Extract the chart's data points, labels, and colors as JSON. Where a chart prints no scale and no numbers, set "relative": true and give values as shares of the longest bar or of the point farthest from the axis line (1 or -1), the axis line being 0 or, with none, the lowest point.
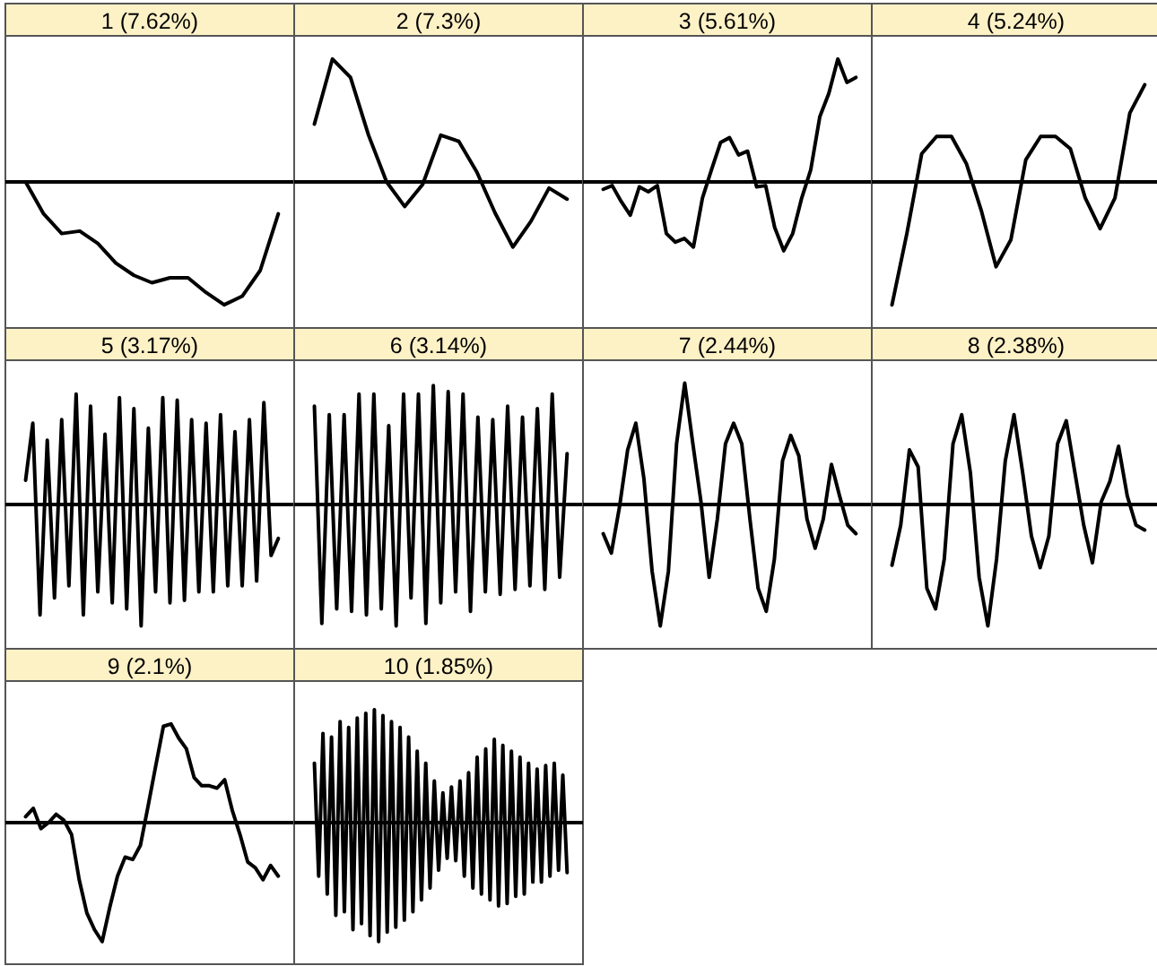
{
  "chart_data": [
    {
      "type": "line",
      "title": "1 (7.62%)",
      "relative": true,
      "categories": [
        null,
        null,
        null,
        null,
        null,
        null,
        null,
        null,
        null,
        null,
        null,
        null,
        null,
        null,
        null
      ],
      "series": [
        {
          "color": "#000000",
          "values": [
            0,
            -0.26,
            -0.42,
            -0.4,
            -0.5,
            -0.66,
            -0.76,
            -0.82,
            -0.78,
            -0.78,
            -0.9,
            -1,
            -0.93,
            -0.72,
            -0.26
          ]
        }
      ]
    },
    {
      "type": "line",
      "title": "2 (7.3%)",
      "relative": true,
      "categories": [
        null,
        null,
        null,
        null,
        null,
        null,
        null,
        null,
        null,
        null,
        null,
        null,
        null,
        null,
        null
      ],
      "series": [
        {
          "color": "#000000",
          "values": [
            0.47,
            1,
            0.85,
            0.38,
            0,
            -0.2,
            -0.02,
            0.38,
            0.33,
            0.08,
            -0.25,
            -0.53,
            -0.32,
            -0.05,
            -0.14
          ]
        }
      ]
    },
    {
      "type": "line",
      "title": "3 (5.61%)",
      "relative": true,
      "categories": [
        null,
        null,
        null,
        null,
        null,
        null,
        null,
        null,
        null,
        null,
        null,
        null,
        null,
        null,
        null,
        null,
        null,
        null,
        null,
        null,
        null,
        null,
        null,
        null,
        null,
        null,
        null,
        null,
        null
      ],
      "series": [
        {
          "color": "#000000",
          "values": [
            -0.06,
            -0.03,
            -0.16,
            -0.27,
            -0.04,
            -0.08,
            -0.03,
            -0.42,
            -0.49,
            -0.46,
            -0.53,
            -0.13,
            0.1,
            0.32,
            0.36,
            0.22,
            0.25,
            -0.04,
            -0.03,
            -0.37,
            -0.56,
            -0.42,
            -0.13,
            0.1,
            0.53,
            0.72,
            1,
            0.81,
            0.85
          ]
        }
      ]
    },
    {
      "type": "line",
      "title": "4 (5.24%)",
      "relative": true,
      "categories": [
        null,
        null,
        null,
        null,
        null,
        null,
        null,
        null,
        null,
        null,
        null,
        null,
        null,
        null,
        null,
        null,
        null,
        null
      ],
      "series": [
        {
          "color": "#000000",
          "values": [
            -1,
            -0.42,
            0.23,
            0.37,
            0.37,
            0.15,
            -0.23,
            -0.69,
            -0.47,
            0.18,
            0.37,
            0.37,
            0.27,
            -0.13,
            -0.38,
            -0.13,
            0.56,
            0.79
          ]
        }
      ]
    },
    {
      "type": "line",
      "title": "5 (3.17%)",
      "relative": true,
      "categories": [
        null,
        null,
        null,
        null,
        null,
        null,
        null,
        null,
        null,
        null,
        null,
        null,
        null,
        null,
        null,
        null,
        null,
        null,
        null,
        null,
        null,
        null,
        null,
        null,
        null,
        null,
        null,
        null,
        null,
        null,
        null,
        null,
        null,
        null,
        null,
        null
      ],
      "series": [
        {
          "color": "#000000",
          "values": [
            0.2,
            0.67,
            -0.91,
            0.53,
            -0.77,
            0.7,
            -0.67,
            0.91,
            -0.91,
            0.81,
            -0.72,
            0.58,
            -0.81,
            0.88,
            -0.86,
            0.79,
            -1,
            0.63,
            -0.72,
            0.88,
            -0.81,
            0.86,
            -0.79,
            0.7,
            -0.72,
            0.67,
            -0.72,
            0.74,
            -0.67,
            0.6,
            -0.67,
            0.7,
            -0.63,
            0.84,
            -0.42,
            -0.28
          ]
        }
      ]
    },
    {
      "type": "line",
      "title": "6 (3.14%)",
      "relative": true,
      "categories": [
        null,
        null,
        null,
        null,
        null,
        null,
        null,
        null,
        null,
        null,
        null,
        null,
        null,
        null,
        null,
        null,
        null,
        null,
        null,
        null,
        null,
        null,
        null,
        null,
        null,
        null,
        null,
        null,
        null,
        null,
        null,
        null,
        null,
        null,
        null
      ],
      "series": [
        {
          "color": "#000000",
          "values": [
            0.81,
            -0.98,
            0.74,
            -0.86,
            0.74,
            -0.88,
            0.91,
            -0.91,
            0.91,
            -0.86,
            0.65,
            -1,
            0.91,
            -0.77,
            0.91,
            -0.98,
            0.98,
            -0.81,
            0.93,
            -0.72,
            0.91,
            -0.88,
            0.72,
            -0.72,
            0.7,
            -0.74,
            0.81,
            -0.7,
            0.72,
            -0.67,
            0.79,
            -0.7,
            0.91,
            -0.6,
            0.42
          ]
        }
      ]
    },
    {
      "type": "line",
      "title": "7 (2.44%)",
      "relative": true,
      "categories": [
        null,
        null,
        null,
        null,
        null,
        null,
        null,
        null,
        null,
        null,
        null,
        null,
        null,
        null,
        null,
        null,
        null,
        null,
        null,
        null,
        null,
        null,
        null,
        null,
        null,
        null,
        null,
        null,
        null,
        null,
        null,
        null
      ],
      "series": [
        {
          "color": "#000000",
          "values": [
            -0.24,
            -0.4,
            -0.02,
            0.45,
            0.67,
            0.21,
            -0.55,
            -1,
            -0.55,
            0.5,
            1,
            0.5,
            0.02,
            -0.6,
            -0.12,
            0.5,
            0.67,
            0.5,
            -0.12,
            -0.69,
            -0.88,
            -0.45,
            0.36,
            0.57,
            0.4,
            -0.12,
            -0.36,
            -0.12,
            0.33,
            0.07,
            -0.17,
            -0.24
          ]
        }
      ]
    },
    {
      "type": "line",
      "title": "8 (2.38%)",
      "relative": true,
      "categories": [
        null,
        null,
        null,
        null,
        null,
        null,
        null,
        null,
        null,
        null,
        null,
        null,
        null,
        null,
        null,
        null,
        null,
        null,
        null,
        null,
        null,
        null,
        null,
        null,
        null,
        null,
        null,
        null,
        null,
        null
      ],
      "series": [
        {
          "color": "#000000",
          "values": [
            -0.5,
            -0.17,
            0.45,
            0.31,
            -0.69,
            -0.86,
            -0.45,
            0.5,
            0.74,
            0.26,
            -0.6,
            -1,
            -0.45,
            0.36,
            0.74,
            0.26,
            -0.26,
            -0.52,
            -0.26,
            0.5,
            0.69,
            0.26,
            -0.17,
            -0.48,
            0.02,
            0.19,
            0.48,
            0.07,
            -0.17,
            -0.21
          ]
        }
      ]
    },
    {
      "type": "line",
      "title": "9 (2.1%)",
      "relative": true,
      "categories": [
        null,
        null,
        null,
        null,
        null,
        null,
        null,
        null,
        null,
        null,
        null,
        null,
        null,
        null,
        null,
        null,
        null,
        null,
        null,
        null,
        null,
        null,
        null,
        null,
        null,
        null,
        null,
        null,
        null,
        null,
        null,
        null,
        null,
        null
      ],
      "series": [
        {
          "color": "#000000",
          "values": [
            0.05,
            0.12,
            -0.05,
            0,
            0.07,
            0.02,
            -0.1,
            -0.48,
            -0.76,
            -0.9,
            -1,
            -0.71,
            -0.45,
            -0.29,
            -0.31,
            -0.19,
            0.14,
            0.48,
            0.81,
            0.83,
            0.71,
            0.62,
            0.38,
            0.31,
            0.31,
            0.29,
            0.36,
            0.1,
            -0.1,
            -0.33,
            -0.38,
            -0.48,
            -0.36,
            -0.45
          ]
        }
      ]
    },
    {
      "type": "line",
      "title": "10 (1.85%)",
      "relative": true,
      "categories": [
        null,
        null,
        null,
        null,
        null,
        null,
        null,
        null,
        null,
        null,
        null,
        null,
        null,
        null,
        null,
        null,
        null,
        null,
        null,
        null,
        null,
        null,
        null,
        null,
        null,
        null,
        null,
        null,
        null,
        null,
        null,
        null,
        null,
        null,
        null,
        null,
        null,
        null,
        null,
        null,
        null,
        null,
        null,
        null,
        null,
        null,
        null,
        null,
        null,
        null,
        null,
        null,
        null,
        null,
        null,
        null,
        null,
        null,
        null,
        null
      ],
      "series": [
        {
          "color": "#000000",
          "values": [
            0.5,
            -0.45,
            0.75,
            -0.6,
            0.72,
            -0.78,
            0.85,
            -0.75,
            0.8,
            -0.9,
            0.88,
            -0.85,
            0.92,
            -0.95,
            0.95,
            -1,
            0.9,
            -0.92,
            0.85,
            -0.88,
            0.8,
            -0.82,
            0.72,
            -0.75,
            0.6,
            -0.65,
            0.5,
            -0.55,
            0.35,
            -0.4,
            0.25,
            -0.3,
            0.3,
            -0.32,
            0.35,
            -0.45,
            0.42,
            -0.55,
            0.55,
            -0.6,
            0.62,
            -0.65,
            0.7,
            -0.7,
            0.65,
            -0.68,
            0.6,
            -0.62,
            0.55,
            -0.6,
            0.5,
            -0.5,
            0.45,
            -0.5,
            0.48,
            -0.45,
            0.5,
            -0.4,
            0.4,
            -0.42
          ]
        }
      ]
    }
  ]
}
